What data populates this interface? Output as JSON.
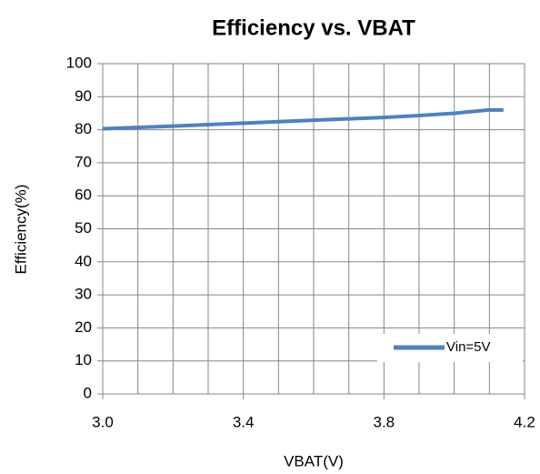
{
  "chart_data": {
    "type": "line",
    "title": "Efficiency vs. VBAT",
    "x_label": "VBAT(V)",
    "y_label": "Efficiency(%)",
    "x": [
      3.0,
      3.2,
      3.4,
      3.6,
      3.8,
      3.9,
      4.0,
      4.05,
      4.1,
      4.14
    ],
    "series": [
      {
        "name": "Vin=5V",
        "color": "#4f81bd",
        "values": [
          80.3,
          81.1,
          82.0,
          82.9,
          83.7,
          84.3,
          85.0,
          85.5,
          86.0,
          86.0
        ]
      }
    ],
    "xlim": [
      3.0,
      4.2
    ],
    "xticks": [
      {
        "value": 3.0,
        "label": "3.0"
      },
      3.4,
      3.8,
      4.2
    ],
    "xminor": [
      3.1,
      3.2,
      3.3,
      3.5,
      3.6,
      3.7,
      3.9,
      4.0,
      4.1
    ],
    "ylim": [
      0,
      100
    ],
    "yticks": [
      0,
      10,
      20,
      30,
      40,
      50,
      60,
      70,
      80,
      90,
      100
    ],
    "grid": true,
    "legend": "lower right"
  }
}
